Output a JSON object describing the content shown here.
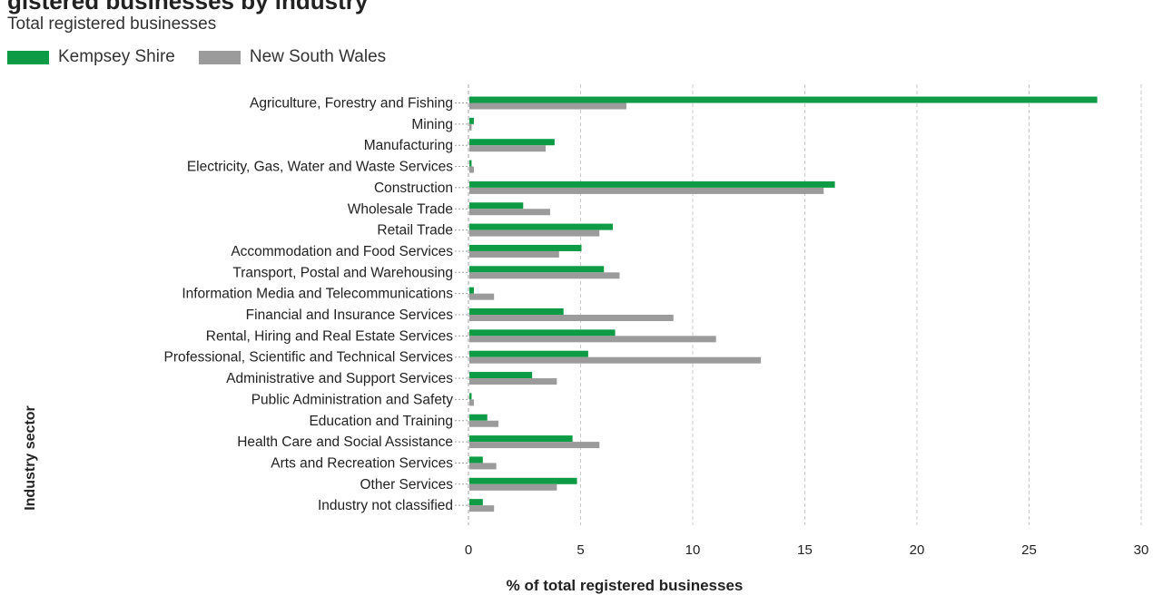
{
  "title_partial": "gistered businesses by industry",
  "subtitle": "Total registered businesses",
  "colors": {
    "kempsey": "#0d9c45",
    "nsw": "#9b9b9b",
    "grid": "#c8c8c8",
    "axis": "#a0a0a0"
  },
  "chart_data": {
    "type": "bar",
    "orientation": "horizontal",
    "categories": [
      "Agriculture, Forestry and Fishing",
      "Mining",
      "Manufacturing",
      "Electricity, Gas, Water and Waste Services",
      "Construction",
      "Wholesale Trade",
      "Retail Trade",
      "Accommodation and Food Services",
      "Transport, Postal and Warehousing",
      "Information Media and Telecommunications",
      "Financial and Insurance Services",
      "Rental, Hiring and Real Estate Services",
      "Professional, Scientific and Technical Services",
      "Administrative and Support Services",
      "Public Administration and Safety",
      "Education and Training",
      "Health Care and Social Assistance",
      "Arts and Recreation Services",
      "Other Services",
      "Industry not classified"
    ],
    "series": [
      {
        "name": "Kempsey Shire",
        "values": [
          28.0,
          0.2,
          3.8,
          0.1,
          16.3,
          2.4,
          6.4,
          5.0,
          6.0,
          0.2,
          4.2,
          6.5,
          5.3,
          2.8,
          0.1,
          0.8,
          4.6,
          0.6,
          4.8,
          0.6
        ]
      },
      {
        "name": "New South Wales",
        "values": [
          7.0,
          0.1,
          3.4,
          0.2,
          15.8,
          3.6,
          5.8,
          4.0,
          6.7,
          1.1,
          9.1,
          11.0,
          13.0,
          3.9,
          0.2,
          1.3,
          5.8,
          1.2,
          3.9,
          1.1
        ]
      }
    ],
    "xlabel": "% of total registered businesses",
    "ylabel": "Industry sector",
    "xlim": [
      0,
      30
    ],
    "xticks": [
      0,
      5,
      10,
      15,
      20,
      25,
      30
    ],
    "grid": "vertical dashed",
    "legend": "top-left"
  }
}
